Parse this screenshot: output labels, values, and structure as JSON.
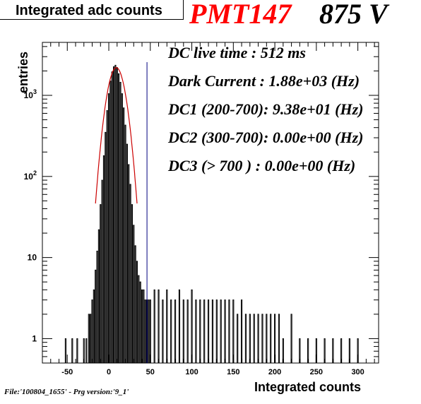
{
  "chart_data": {
    "type": "histogram",
    "title": "Integrated adc counts",
    "xlabel": "Integrated counts",
    "ylabel": "entries",
    "xlim": [
      -80,
      325
    ],
    "ylim": [
      0.5,
      4500
    ],
    "y_scale": "log",
    "x_ticks": [
      "-50",
      "0",
      "50",
      "100",
      "150",
      "200",
      "250",
      "300"
    ],
    "x_tick_values": [
      -50,
      0,
      50,
      100,
      150,
      200,
      250,
      300
    ],
    "y_ticks": [
      "1",
      "10",
      "10^2",
      "10^3"
    ],
    "y_tick_values": [
      1,
      10,
      100,
      1000
    ],
    "series": [
      {
        "kind": "histogram",
        "color": "#000000",
        "bin_width": 1,
        "x": [
          -52,
          -44,
          -38,
          -30,
          -27,
          -24,
          -22,
          -20,
          -18,
          -16,
          -14,
          -12,
          -10,
          -8,
          -6,
          -4,
          -2,
          0,
          2,
          4,
          6,
          8,
          10,
          12,
          14,
          16,
          18,
          20,
          22,
          24,
          26,
          28,
          30,
          32,
          34,
          36,
          38,
          40,
          42,
          44,
          46,
          48,
          50,
          55,
          60,
          65,
          70,
          75,
          80,
          85,
          90,
          95,
          100,
          105,
          110,
          115,
          120,
          125,
          130,
          135,
          140,
          145,
          150,
          155,
          160,
          165,
          170,
          175,
          180,
          185,
          190,
          195,
          200,
          205,
          210,
          220,
          230,
          240,
          250,
          260,
          270,
          280,
          290,
          300
        ],
        "y": [
          1,
          1,
          1,
          1,
          1,
          2,
          2,
          3,
          4,
          7,
          12,
          22,
          45,
          90,
          180,
          350,
          650,
          1050,
          1500,
          1950,
          2250,
          2350,
          2200,
          1850,
          1450,
          1050,
          700,
          430,
          250,
          140,
          80,
          45,
          25,
          14,
          9,
          6,
          5,
          4,
          4,
          3,
          3,
          3,
          3,
          4,
          4,
          3,
          4,
          3,
          3,
          4,
          3,
          3,
          4,
          3,
          3,
          3,
          3,
          3,
          3,
          3,
          3,
          3,
          3,
          2,
          3,
          2,
          2,
          2,
          2,
          2,
          2,
          2,
          2,
          2,
          1,
          2,
          1,
          1,
          1,
          1,
          1,
          1,
          1,
          1
        ]
      },
      {
        "kind": "gaussian-fit",
        "color": "#cc0000",
        "amplitude": 2200,
        "mean": 9,
        "sigma": 9,
        "x_range": [
          -16,
          34
        ]
      }
    ],
    "markers": [
      {
        "kind": "vertical-line",
        "x": 46,
        "color": "#000080"
      }
    ]
  },
  "header": {
    "pmt_label": "PMT147",
    "voltage_label": "875 V"
  },
  "info": {
    "dc_live_time": "DC live time :  512 ms",
    "dark_current": "Dark Current  : 1.88e+03 (Hz)",
    "dc1": "DC1 (200-700): 9.38e+01 (Hz)",
    "dc2": "DC2 (300-700): 0.00e+00 (Hz)",
    "dc3": "DC3  (> 700 ) : 0.00e+00 (Hz)"
  },
  "footer": {
    "file_info": "File:'100804_1655'  -  Prg version:'9_1'"
  }
}
